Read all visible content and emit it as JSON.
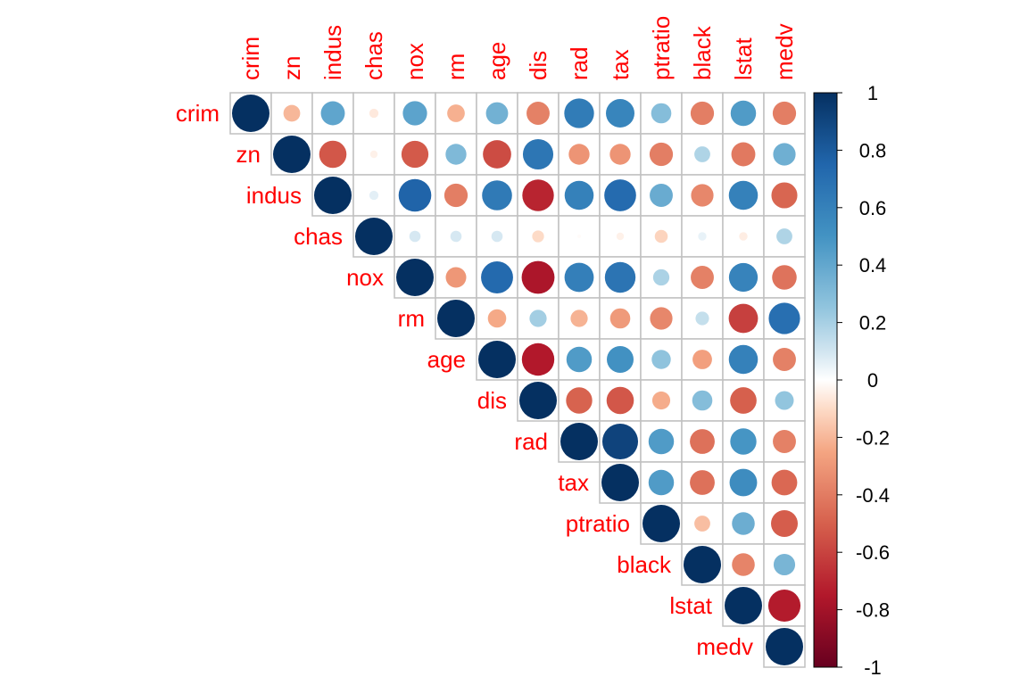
{
  "chart_data": {
    "type": "heatmap",
    "shape": "upper-triangle circles",
    "variables": [
      "crim",
      "zn",
      "indus",
      "chas",
      "nox",
      "rm",
      "age",
      "dis",
      "rad",
      "tax",
      "ptratio",
      "black",
      "lstat",
      "medv"
    ],
    "matrix": [
      [
        1.0,
        -0.2,
        0.41,
        -0.06,
        0.42,
        -0.22,
        0.35,
        -0.38,
        0.63,
        0.58,
        0.29,
        -0.39,
        0.46,
        -0.39
      ],
      [
        -0.2,
        1.0,
        -0.53,
        -0.04,
        -0.52,
        0.31,
        -0.57,
        0.66,
        -0.31,
        -0.31,
        -0.39,
        0.18,
        -0.41,
        0.36
      ],
      [
        0.41,
        -0.53,
        1.0,
        0.06,
        0.76,
        -0.39,
        0.64,
        -0.71,
        0.6,
        0.72,
        0.38,
        -0.36,
        0.6,
        -0.48
      ],
      [
        -0.06,
        -0.04,
        0.06,
        1.0,
        0.09,
        0.09,
        0.09,
        -0.1,
        -0.01,
        -0.04,
        -0.12,
        0.05,
        -0.05,
        0.18
      ],
      [
        0.42,
        -0.52,
        0.76,
        0.09,
        1.0,
        -0.3,
        0.73,
        -0.77,
        0.61,
        0.67,
        0.19,
        -0.38,
        0.59,
        -0.43
      ],
      [
        -0.22,
        0.31,
        -0.39,
        0.09,
        -0.3,
        1.0,
        -0.24,
        0.21,
        -0.21,
        -0.29,
        -0.36,
        0.13,
        -0.61,
        0.7
      ],
      [
        0.35,
        -0.57,
        0.64,
        0.09,
        0.73,
        -0.24,
        1.0,
        -0.75,
        0.46,
        0.51,
        0.26,
        -0.27,
        0.6,
        -0.38
      ],
      [
        -0.38,
        0.66,
        -0.71,
        -0.1,
        -0.77,
        0.21,
        -0.75,
        1.0,
        -0.49,
        -0.53,
        -0.23,
        0.29,
        -0.5,
        0.25
      ],
      [
        0.63,
        -0.31,
        0.6,
        -0.01,
        0.61,
        -0.21,
        0.46,
        -0.49,
        1.0,
        0.91,
        0.46,
        -0.44,
        0.49,
        -0.38
      ],
      [
        0.58,
        -0.31,
        0.72,
        -0.04,
        0.67,
        -0.29,
        0.51,
        -0.53,
        0.91,
        1.0,
        0.46,
        -0.44,
        0.54,
        -0.47
      ],
      [
        0.29,
        -0.39,
        0.38,
        -0.12,
        0.19,
        -0.36,
        0.26,
        -0.23,
        0.46,
        0.46,
        1.0,
        -0.18,
        0.37,
        -0.51
      ],
      [
        -0.39,
        0.18,
        -0.36,
        0.05,
        -0.38,
        0.13,
        -0.27,
        0.29,
        -0.44,
        -0.44,
        -0.18,
        1.0,
        -0.37,
        0.33
      ],
      [
        0.46,
        -0.41,
        0.6,
        -0.05,
        0.59,
        -0.61,
        0.6,
        -0.5,
        0.49,
        0.54,
        0.37,
        -0.37,
        1.0,
        -0.74
      ],
      [
        -0.39,
        0.36,
        -0.48,
        0.18,
        -0.43,
        0.7,
        -0.38,
        0.25,
        -0.38,
        -0.47,
        -0.51,
        0.33,
        -0.74,
        1.0
      ]
    ],
    "colorbar": {
      "min": -1,
      "max": 1,
      "ticks": [
        "1",
        "0.8",
        "0.6",
        "0.4",
        "0.2",
        "0",
        "-0.2",
        "-0.4",
        "-0.6",
        "-0.8",
        "-1"
      ],
      "low_color": "#67001f",
      "mid_color": "#ffffff",
      "high_color": "#053061"
    },
    "label_color": "#ff0000",
    "grid_color": "#c0c0c0"
  }
}
